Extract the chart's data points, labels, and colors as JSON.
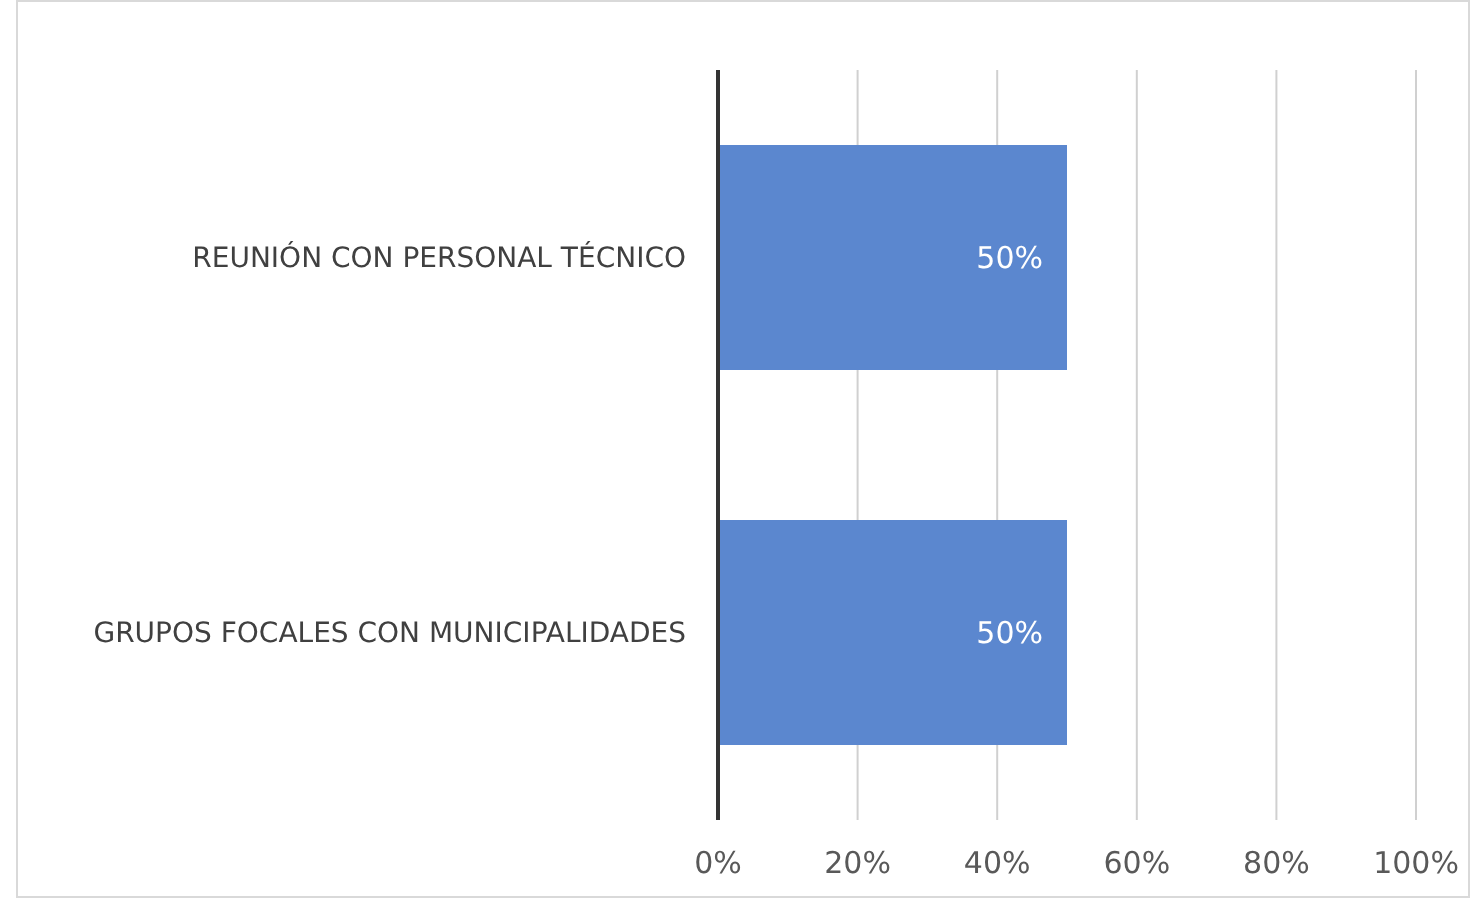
{
  "chart_data": {
    "type": "bar",
    "orientation": "horizontal",
    "categories": [
      "REUNIÓN CON PERSONAL TÉCNICO",
      "GRUPOS FOCALES CON MUNICIPALIDADES"
    ],
    "values": [
      50,
      50
    ],
    "value_labels": [
      "50%",
      "50%"
    ],
    "color": "#5b87cf",
    "xlim": [
      0,
      100
    ],
    "xticks": [
      {
        "value": 0,
        "label": "0%"
      },
      {
        "value": 20,
        "label": "20%"
      },
      {
        "value": 40,
        "label": "40%"
      },
      {
        "value": 60,
        "label": "60%"
      },
      {
        "value": 80,
        "label": "80%"
      },
      {
        "value": 100,
        "label": "100%"
      }
    ],
    "grid": "x"
  }
}
